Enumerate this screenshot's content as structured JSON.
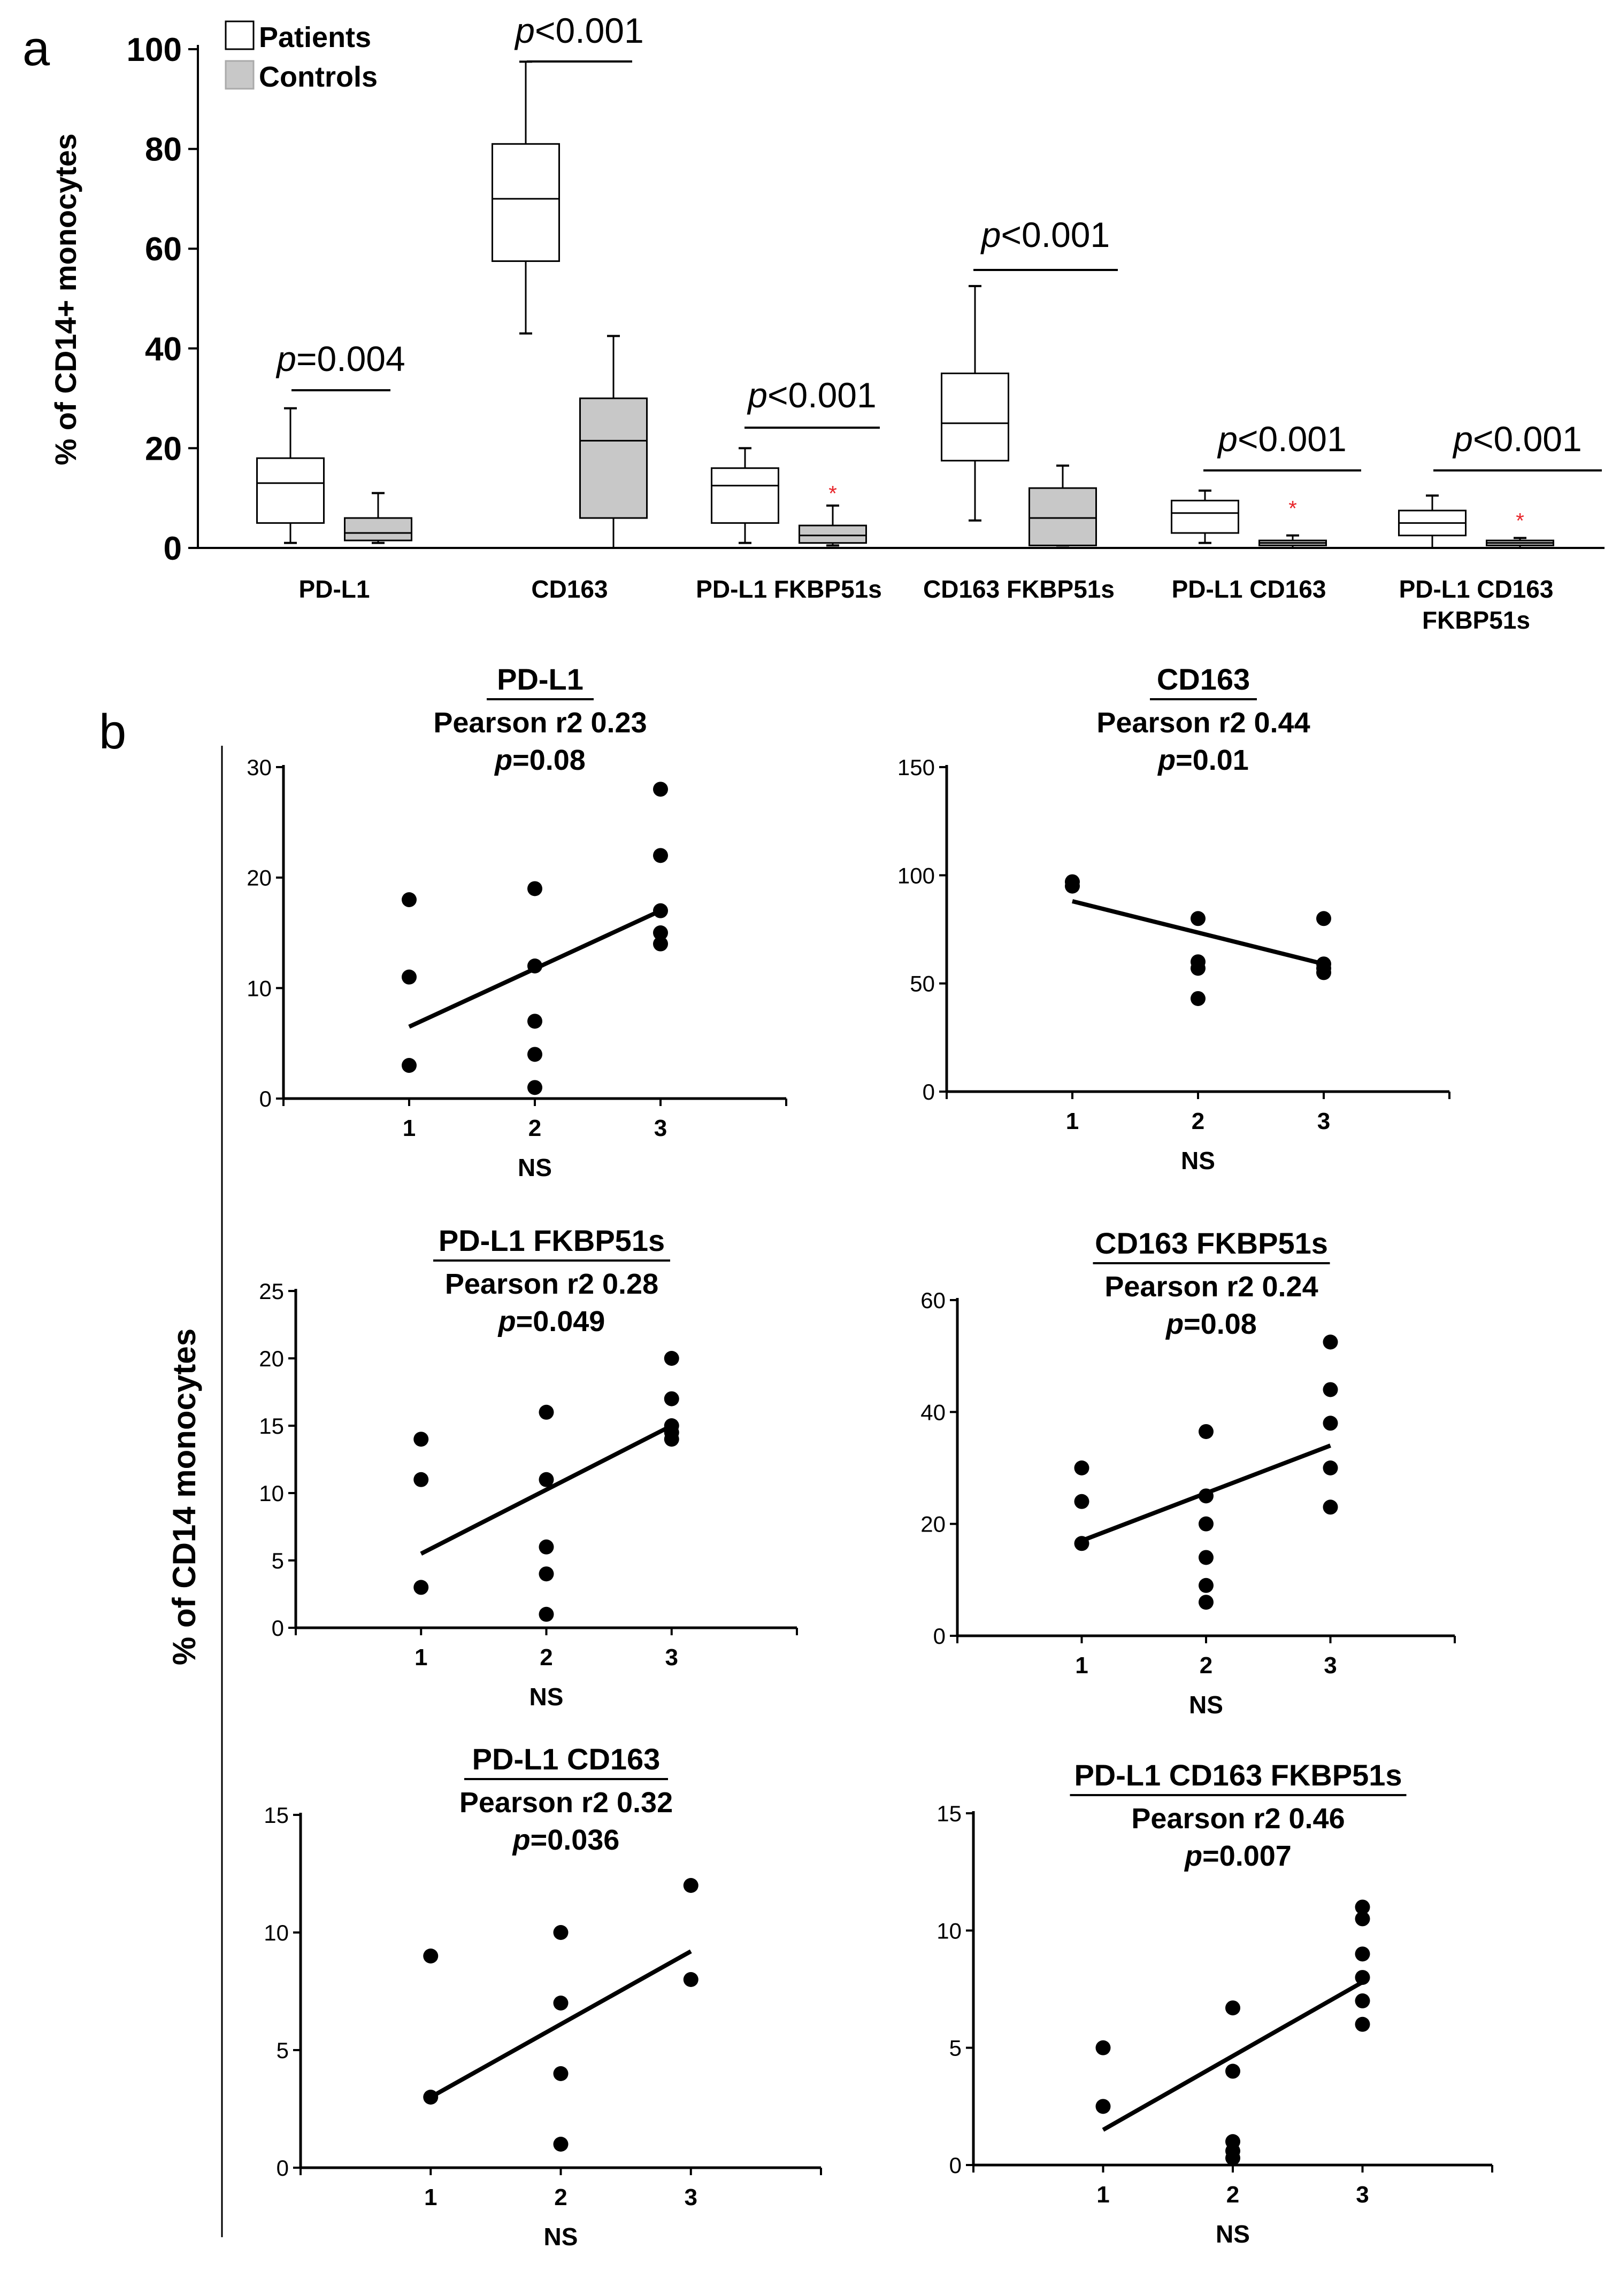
{
  "panel_labels": {
    "a": "a",
    "b": "b"
  },
  "colors": {
    "patients": "#ffffff",
    "controls": "#c8c8c8",
    "ink": "#000000",
    "outlier": "#e8262b"
  },
  "chart_data": [
    {
      "type": "box",
      "panel": "a",
      "ylabel": "% of CD14+ monocytes",
      "ylim": [
        0,
        100
      ],
      "yticks": [
        "0",
        "20",
        "40",
        "60",
        "80",
        "100"
      ],
      "legend": {
        "position": "top-left",
        "entries": [
          "Patients",
          "Controls"
        ]
      },
      "categories": [
        "PD-L1",
        "CD163",
        "PD-L1 FKBP51s",
        "CD163 FKBP51s",
        "PD-L1 CD163",
        [
          "PD-L1 CD163",
          "FKBP51s"
        ]
      ],
      "series": [
        {
          "name": "Patients",
          "boxes": [
            {
              "min": 1,
              "q1": 5,
              "median": 13,
              "q3": 18,
              "max": 28
            },
            {
              "min": 43,
              "q1": 57.5,
              "median": 70,
              "q3": 81,
              "max": 97.5
            },
            {
              "min": 1,
              "q1": 5,
              "median": 12.5,
              "q3": 16,
              "max": 20
            },
            {
              "min": 5.5,
              "q1": 17.5,
              "median": 25,
              "q3": 35,
              "max": 52.5
            },
            {
              "min": 1,
              "q1": 3,
              "median": 7,
              "q3": 9.5,
              "max": 11.5
            },
            {
              "min": 0,
              "q1": 2.5,
              "median": 5,
              "q3": 7.5,
              "max": 10.5
            }
          ]
        },
        {
          "name": "Controls",
          "boxes": [
            {
              "min": 1,
              "q1": 1.5,
              "median": 3,
              "q3": 6,
              "max": 11
            },
            {
              "min": 0,
              "q1": 6,
              "median": 21.5,
              "q3": 30,
              "max": 42.5
            },
            {
              "min": 0.5,
              "q1": 1,
              "median": 2.5,
              "q3": 4.5,
              "max": 8.5,
              "outliers": [
                11
              ]
            },
            {
              "min": 0.5,
              "q1": 0.5,
              "median": 6,
              "q3": 12,
              "max": 16.5
            },
            {
              "min": 0,
              "q1": 0.5,
              "median": 1,
              "q3": 1.5,
              "max": 2.5,
              "outliers": [
                8
              ]
            },
            {
              "min": 0,
              "q1": 0.5,
              "median": 1,
              "q3": 1.5,
              "max": 2,
              "outliers": [
                5.5
              ]
            }
          ]
        }
      ],
      "pvalues": [
        "p=0.004",
        "p<0.001",
        "p<0.001",
        "p<0.001",
        "p<0.001",
        "p<0.001"
      ]
    },
    {
      "type": "scatter",
      "panel": "b",
      "ylabel": "% of CD14 monocytes",
      "title": "PD-L1",
      "stat": "Pearson r2 0.23",
      "pvalue": "p=0.08",
      "xlabel": "NS",
      "xticks": [
        "1",
        "2",
        "3"
      ],
      "xlim": [
        0,
        4
      ],
      "ylim": [
        0,
        30
      ],
      "yticks": [
        "0",
        "10",
        "20",
        "30"
      ],
      "x": [
        1,
        1,
        1,
        2,
        2,
        2,
        2,
        2,
        3,
        3,
        3,
        3,
        3
      ],
      "y": [
        18,
        11,
        3,
        19,
        12,
        7,
        4,
        1,
        28,
        22,
        17,
        15,
        14
      ],
      "fit": [
        [
          1,
          6.5
        ],
        [
          3,
          17
        ]
      ]
    },
    {
      "type": "scatter",
      "panel": "b",
      "title": "CD163",
      "stat": "Pearson r2 0.44",
      "pvalue": "p=0.01",
      "xlabel": "NS",
      "xticks": [
        "1",
        "2",
        "3"
      ],
      "xlim": [
        0,
        4
      ],
      "ylim": [
        0,
        150
      ],
      "yticks": [
        "0",
        "50",
        "100",
        "150"
      ],
      "x": [
        1,
        1,
        2,
        2,
        2,
        2,
        3,
        3,
        3,
        3
      ],
      "y": [
        97,
        95,
        80,
        60,
        57,
        43,
        80,
        59,
        57,
        55
      ],
      "fit": [
        [
          1,
          88
        ],
        [
          3,
          59
        ]
      ]
    },
    {
      "type": "scatter",
      "panel": "b",
      "title": "PD-L1 FKBP51s",
      "stat": "Pearson r2 0.28",
      "pvalue": "p=0.049",
      "xlabel": "NS",
      "xticks": [
        "1",
        "2",
        "3"
      ],
      "xlim": [
        0,
        4
      ],
      "ylim": [
        0,
        25
      ],
      "yticks": [
        "0",
        "5",
        "10",
        "15",
        "20",
        "25"
      ],
      "x": [
        1,
        1,
        1,
        2,
        2,
        2,
        2,
        2,
        3,
        3,
        3,
        3,
        3
      ],
      "y": [
        14,
        11,
        3,
        16,
        11,
        6,
        4,
        1,
        20,
        17,
        15,
        14.5,
        14
      ],
      "fit": [
        [
          1,
          5.5
        ],
        [
          3,
          15
        ]
      ]
    },
    {
      "type": "scatter",
      "panel": "b",
      "title": "CD163 FKBP51s",
      "stat": "Pearson r2 0.24",
      "pvalue": "p=0.08",
      "xlabel": "NS",
      "xticks": [
        "1",
        "2",
        "3"
      ],
      "xlim": [
        0,
        4
      ],
      "ylim": [
        0,
        60
      ],
      "yticks": [
        "0",
        "20",
        "40",
        "60"
      ],
      "x": [
        1,
        1,
        1,
        2,
        2,
        2,
        2,
        2,
        2,
        3,
        3,
        3,
        3,
        3
      ],
      "y": [
        30,
        24,
        16.5,
        36.5,
        25,
        20,
        14,
        9,
        6,
        52.5,
        44,
        38,
        30,
        23
      ],
      "fit": [
        [
          1,
          17
        ],
        [
          3,
          34
        ]
      ]
    },
    {
      "type": "scatter",
      "panel": "b",
      "title": "PD-L1 CD163",
      "stat": "Pearson r2 0.32",
      "pvalue": "p=0.036",
      "xlabel": "NS",
      "xticks": [
        "1",
        "2",
        "3"
      ],
      "xlim": [
        0,
        4
      ],
      "ylim": [
        0,
        15
      ],
      "yticks": [
        "0",
        "5",
        "10",
        "15"
      ],
      "x": [
        1,
        1,
        2,
        2,
        2,
        2,
        3,
        3
      ],
      "y": [
        9,
        3,
        10,
        7,
        4,
        1,
        12,
        8
      ],
      "fit": [
        [
          1,
          3
        ],
        [
          3,
          9.2
        ]
      ]
    },
    {
      "type": "scatter",
      "panel": "b",
      "title": "PD-L1 CD163 FKBP51s",
      "stat": "Pearson r2 0.46",
      "pvalue": "p=0.007",
      "xlabel": "NS",
      "xticks": [
        "1",
        "2",
        "3"
      ],
      "xlim": [
        0,
        4
      ],
      "ylim": [
        0,
        15
      ],
      "yticks": [
        "0",
        "5",
        "10",
        "15"
      ],
      "x": [
        1,
        1,
        2,
        2,
        2,
        2,
        2,
        3,
        3,
        3,
        3,
        3,
        3
      ],
      "y": [
        5,
        2.5,
        6.7,
        4,
        1,
        0.6,
        0.3,
        11,
        10.5,
        9,
        8,
        7,
        6
      ],
      "fit": [
        [
          1,
          1.5
        ],
        [
          3,
          7.8
        ]
      ]
    }
  ]
}
